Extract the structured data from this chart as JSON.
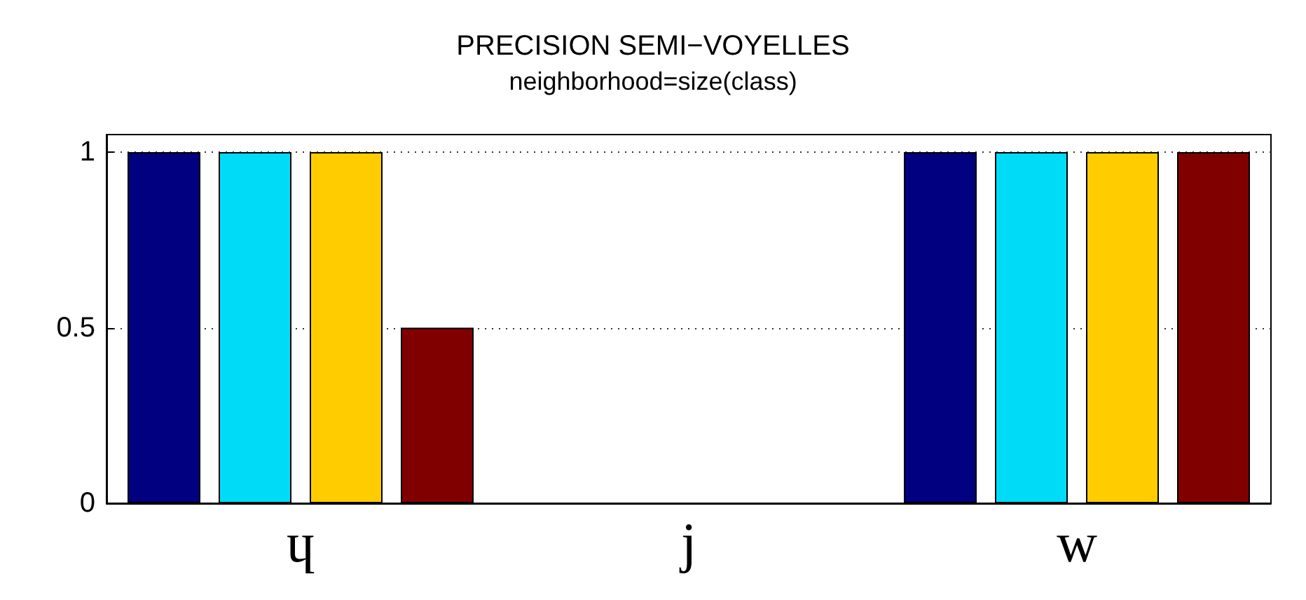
{
  "chart_data": {
    "type": "bar",
    "title": "PRECISION SEMI−VOYELLES",
    "subtitle": "neighborhood=size(class)",
    "categories": [
      "ɥ",
      "j",
      "w"
    ],
    "series": [
      {
        "color": "#000080",
        "values": [
          1,
          null,
          1
        ]
      },
      {
        "color": "#00dcf8",
        "values": [
          1,
          null,
          1
        ]
      },
      {
        "color": "#ffcc00",
        "values": [
          1,
          null,
          1
        ]
      },
      {
        "color": "#800000",
        "values": [
          0.5,
          null,
          1
        ]
      }
    ],
    "ylim": [
      0,
      1.05
    ],
    "yticks": [
      0,
      0.5,
      1
    ],
    "grid": "y"
  }
}
